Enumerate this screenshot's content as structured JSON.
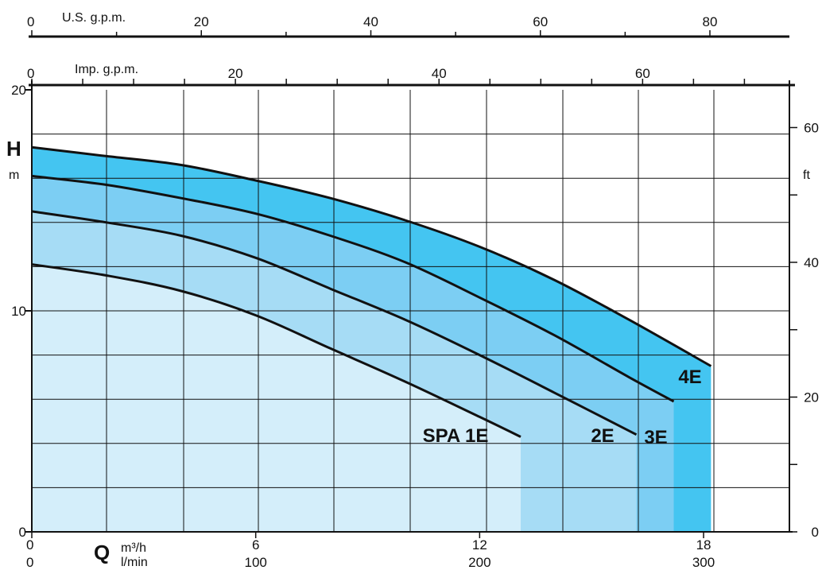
{
  "chart_data": {
    "type": "area",
    "xlabel": "Q",
    "ylabel": "H",
    "x_units": {
      "primary": "m³/h",
      "secondary": "l/min"
    },
    "y_units": {
      "left": "m",
      "right": "ft"
    },
    "xlim": [
      0,
      20.3
    ],
    "ylim": [
      0,
      20
    ],
    "x_ticks_m3h": [
      "0",
      "6",
      "12",
      "18"
    ],
    "x_ticks_lmin": [
      "0",
      "100",
      "200",
      "300"
    ],
    "y_ticks_m": [
      "0",
      "10",
      "20"
    ],
    "y_ticks_ft": [
      "0",
      "20",
      "40",
      "60"
    ],
    "top_axes": [
      {
        "label": "U.S. g.p.m.",
        "ticks": [
          "0",
          "20",
          "40",
          "60",
          "80"
        ]
      },
      {
        "label": "Imp. g.p.m.",
        "ticks": [
          "0",
          "20",
          "40",
          "60"
        ]
      }
    ],
    "grid": true,
    "series": [
      {
        "name": "SPA 1E",
        "color": "#d4eefa",
        "x": [
          0,
          2,
          4,
          6,
          8,
          10,
          12,
          13.1
        ],
        "y": [
          12.1,
          11.6,
          10.9,
          9.8,
          8.3,
          6.8,
          5.2,
          4.3
        ]
      },
      {
        "name": "2E",
        "color": "#a6dcf5",
        "x": [
          0,
          2,
          4,
          6,
          8,
          10,
          12,
          14,
          16.2
        ],
        "y": [
          14.5,
          14.0,
          13.4,
          12.4,
          11.0,
          9.6,
          8.0,
          6.3,
          4.4
        ]
      },
      {
        "name": "3E",
        "color": "#7ccef3",
        "x": [
          0,
          2,
          4,
          6,
          8,
          10,
          12,
          14,
          16,
          17.2
        ],
        "y": [
          16.1,
          15.7,
          15.1,
          14.4,
          13.4,
          12.2,
          10.6,
          8.9,
          7.0,
          5.9
        ]
      },
      {
        "name": "4E",
        "color": "#44c5f1",
        "x": [
          0,
          2,
          4,
          6,
          8,
          10,
          12,
          14,
          16,
          18.2
        ],
        "y": [
          17.4,
          17.0,
          16.6,
          15.9,
          15.1,
          14.1,
          12.9,
          11.4,
          9.6,
          7.5
        ]
      }
    ]
  }
}
